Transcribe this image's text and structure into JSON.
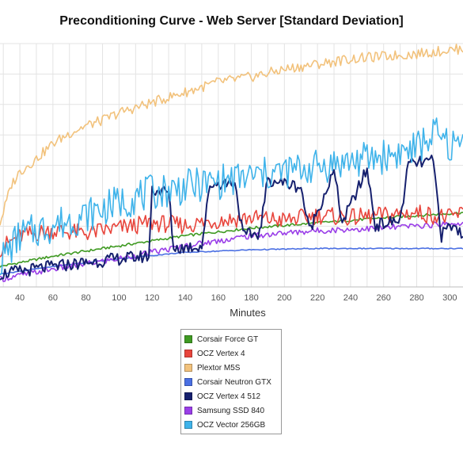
{
  "chart_data": {
    "type": "line",
    "title": "Preconditioning Curve - Web Server [Standard Deviation]",
    "subtitle": "",
    "xlabel": "Minutes",
    "ylabel": "",
    "x_ticks": [
      40,
      60,
      80,
      100,
      120,
      140,
      160,
      180,
      200,
      220,
      240,
      260,
      280,
      300
    ],
    "xlim": [
      28,
      308
    ],
    "ylim": [
      0,
      9.5
    ],
    "grid": true,
    "legend_position": "bottom-center",
    "series": [
      {
        "name": "Corsair Force GT",
        "color": "#3f9a22",
        "x": [
          28,
          60,
          100,
          140,
          180,
          220,
          260,
          308
        ],
        "y": [
          0.8,
          1.2,
          1.6,
          2.0,
          2.3,
          2.5,
          2.7,
          2.9
        ]
      },
      {
        "name": "OCZ Vertex 4",
        "color": "#e8453c",
        "x": [
          28,
          40,
          60,
          80,
          100,
          120,
          140,
          160,
          180,
          200,
          220,
          240,
          260,
          280,
          300,
          308
        ],
        "y": [
          1.5,
          2.0,
          2.2,
          2.1,
          2.3,
          2.5,
          2.4,
          2.6,
          2.7,
          2.6,
          2.8,
          2.7,
          2.8,
          2.9,
          2.7,
          2.9
        ]
      },
      {
        "name": "Plextor M5S",
        "color": "#f2c27c",
        "x": [
          28,
          35,
          40,
          50,
          60,
          70,
          80,
          90,
          100,
          120,
          140,
          160,
          180,
          200,
          220,
          240,
          260,
          280,
          300,
          308
        ],
        "y": [
          2.5,
          4.0,
          4.5,
          5.0,
          5.6,
          6.0,
          6.3,
          6.5,
          6.8,
          7.2,
          7.6,
          8.0,
          8.2,
          8.5,
          8.7,
          8.9,
          9.0,
          9.1,
          9.25,
          9.3
        ]
      },
      {
        "name": "Corsair Neutron GTX",
        "color": "#4a6fe3",
        "x": [
          28,
          60,
          100,
          140,
          180,
          220,
          260,
          308
        ],
        "y": [
          0.5,
          0.8,
          1.1,
          1.35,
          1.45,
          1.5,
          1.5,
          1.5
        ]
      },
      {
        "name": "OCZ Vertex 4 512",
        "color": "#16206e",
        "x": [
          28,
          60,
          100,
          118,
          120,
          130,
          133,
          150,
          155,
          170,
          175,
          185,
          190,
          210,
          215,
          230,
          235,
          250,
          255,
          270,
          275,
          290,
          295,
          300,
          308
        ],
        "y": [
          0.5,
          0.8,
          1.1,
          1.2,
          3.8,
          3.7,
          1.5,
          1.6,
          4.0,
          4.1,
          2.0,
          2.1,
          4.2,
          3.9,
          2.2,
          4.5,
          2.5,
          4.6,
          2.4,
          2.6,
          4.8,
          4.9,
          2.0,
          2.4,
          2.1
        ]
      },
      {
        "name": "Samsung SSD 840",
        "color": "#9a3ee8",
        "x": [
          28,
          60,
          100,
          140,
          180,
          220,
          260,
          308
        ],
        "y": [
          0.3,
          0.7,
          1.1,
          1.6,
          2.0,
          2.2,
          2.3,
          2.5
        ]
      },
      {
        "name": "OCZ Vector 256GB",
        "color": "#3fb3ea",
        "x": [
          28,
          40,
          60,
          80,
          100,
          120,
          140,
          160,
          180,
          200,
          220,
          240,
          260,
          280,
          290,
          300,
          308
        ],
        "y": [
          1.0,
          2.0,
          2.4,
          2.8,
          3.3,
          3.7,
          3.9,
          4.1,
          4.3,
          4.5,
          4.7,
          4.9,
          5.1,
          5.4,
          6.0,
          5.5,
          5.6
        ]
      }
    ]
  }
}
